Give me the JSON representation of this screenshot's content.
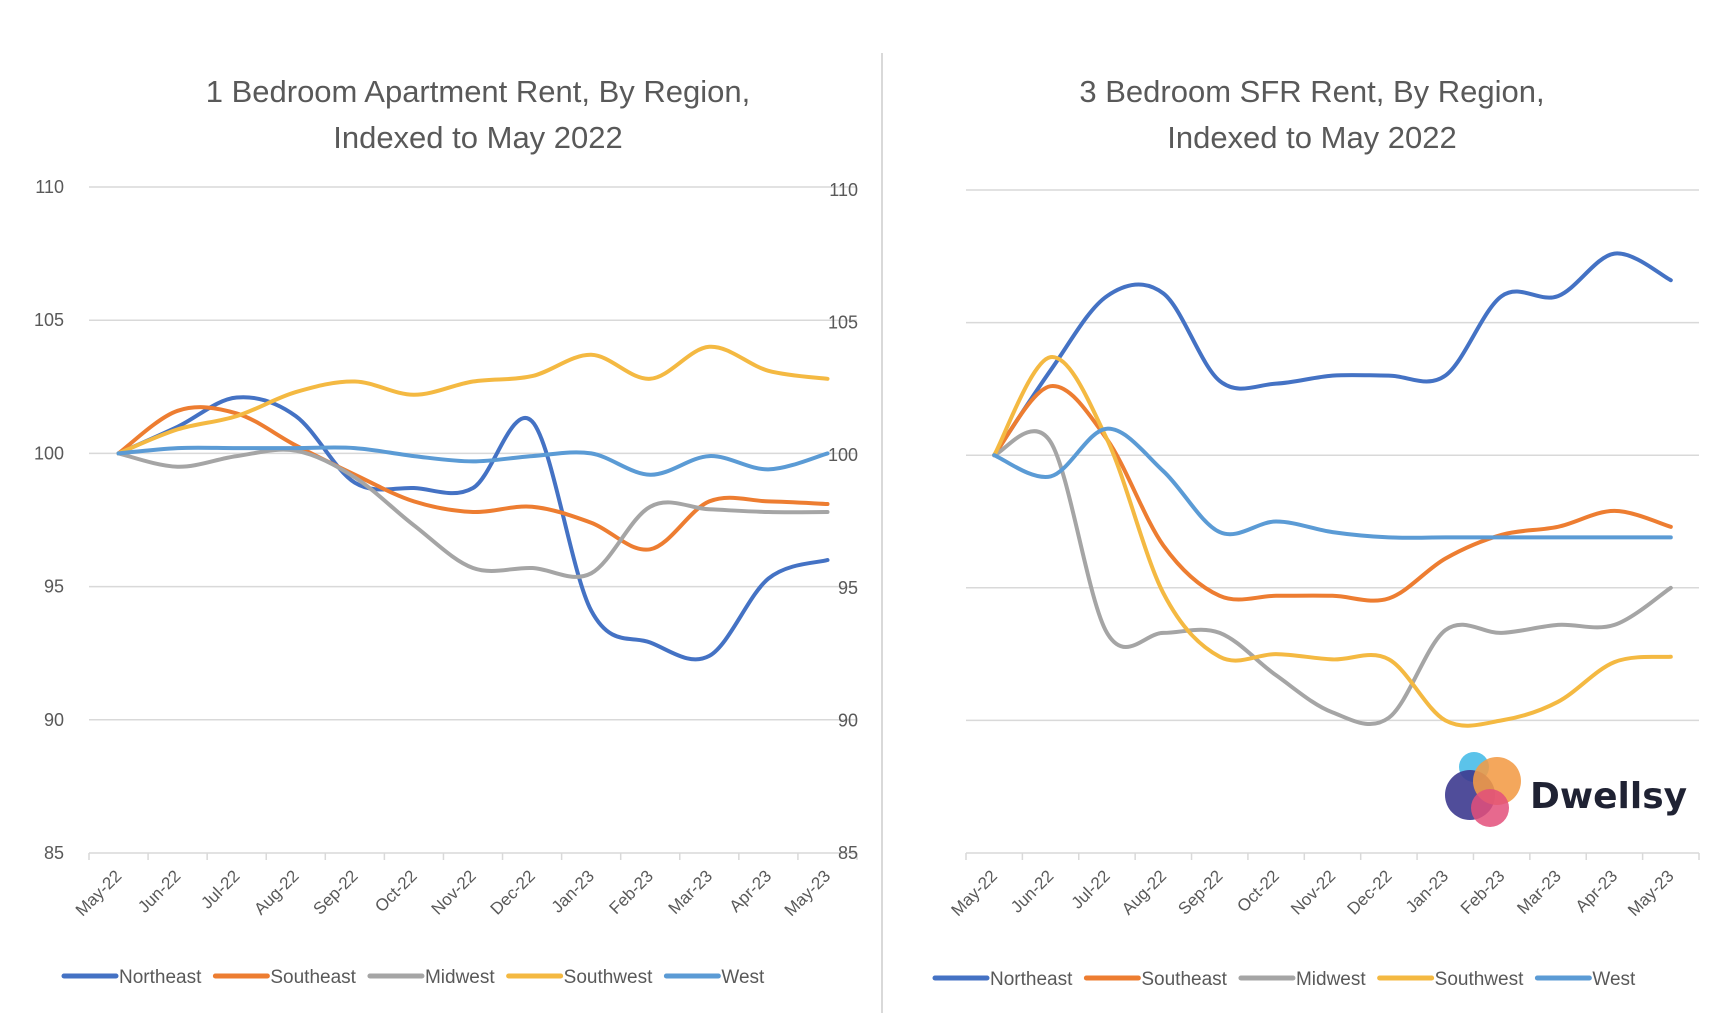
{
  "colors": {
    "Northeast": "#4472c4",
    "Southeast": "#ed7d31",
    "Midwest": "#a5a5a5",
    "Southwest": "#ffc000",
    "West": "#5b9bd5",
    "Southwest_display": "#f4b942",
    "text": "#595959",
    "grid": "#d9d9d9"
  },
  "logo": {
    "brand_name": "Dwellsy",
    "icon": "overlapping-circles-logo",
    "circle_colors": [
      "#5bc3ea",
      "#f29b45",
      "#3d3a8f",
      "#e34f7a"
    ]
  },
  "chart_data": [
    {
      "type": "line",
      "title_lines": [
        "1 Bedroom Apartment Rent, By Region,",
        "Indexed to May 2022"
      ],
      "title": "1 Bedroom Apartment Rent, By Region, Indexed to May 2022",
      "xlabel": "",
      "ylabel": "",
      "ylim": [
        85,
        110
      ],
      "yticks": [
        85,
        90,
        95,
        100,
        105,
        110
      ],
      "grid": true,
      "legend_position": "bottom",
      "categories": [
        "May-22",
        "Jun-22",
        "Jul-22",
        "Aug-22",
        "Sep-22",
        "Oct-22",
        "Nov-22",
        "Dec-22",
        "Jan-23",
        "Feb-23",
        "Mar-23",
        "Apr-23",
        "May-23"
      ],
      "series": [
        {
          "name": "Northeast",
          "values": [
            100,
            101.0,
            102.1,
            101.4,
            98.9,
            98.7,
            98.7,
            101.2,
            94.1,
            92.9,
            92.4,
            95.3,
            96.0
          ]
        },
        {
          "name": "Southeast",
          "values": [
            100,
            101.6,
            101.5,
            100.3,
            99.2,
            98.2,
            97.8,
            98.0,
            97.4,
            96.4,
            98.2,
            98.2,
            98.1
          ]
        },
        {
          "name": "Midwest",
          "values": [
            100,
            99.5,
            99.9,
            100.1,
            99.1,
            97.3,
            95.7,
            95.7,
            95.5,
            98.0,
            97.9,
            97.8,
            97.8
          ]
        },
        {
          "name": "Southwest",
          "values": [
            100,
            100.9,
            101.4,
            102.3,
            102.7,
            102.2,
            102.7,
            102.9,
            103.7,
            102.8,
            104.0,
            103.1,
            102.8
          ]
        },
        {
          "name": "West",
          "values": [
            100,
            100.2,
            100.2,
            100.2,
            100.2,
            99.9,
            99.7,
            99.9,
            100.0,
            99.2,
            99.9,
            99.4,
            100.0
          ]
        }
      ]
    },
    {
      "type": "line",
      "title_lines": [
        "3 Bedroom SFR Rent, By Region,",
        "Indexed to May 2022"
      ],
      "title": "3 Bedroom SFR Rent, By Region, Indexed to May 2022",
      "xlabel": "",
      "ylabel": "",
      "ylim": [
        85,
        110
      ],
      "yticks": [
        85,
        90,
        95,
        100,
        105,
        110
      ],
      "grid": true,
      "legend_position": "bottom",
      "categories": [
        "May-22",
        "Jun-22",
        "Jul-22",
        "Aug-22",
        "Sep-22",
        "Oct-22",
        "Nov-22",
        "Dec-22",
        "Jan-23",
        "Feb-23",
        "Mar-23",
        "Apr-23",
        "May-23"
      ],
      "series": [
        {
          "name": "Northeast",
          "values": [
            100,
            103.2,
            106.0,
            106.1,
            102.8,
            102.7,
            103.0,
            103.0,
            103.0,
            106.0,
            106.0,
            107.6,
            106.6
          ]
        },
        {
          "name": "Southeast",
          "values": [
            100,
            102.6,
            100.6,
            96.6,
            94.7,
            94.7,
            94.7,
            94.6,
            96.1,
            97.0,
            97.3,
            97.9,
            97.3
          ]
        },
        {
          "name": "Midwest",
          "values": [
            100,
            100.5,
            93.3,
            93.3,
            93.3,
            91.7,
            90.3,
            90.1,
            93.4,
            93.3,
            93.6,
            93.6,
            95.0
          ]
        },
        {
          "name": "Southwest",
          "values": [
            100,
            103.7,
            100.6,
            94.8,
            92.4,
            92.5,
            92.3,
            92.3,
            90.0,
            90.0,
            90.7,
            92.2,
            92.4
          ]
        },
        {
          "name": "West",
          "values": [
            100,
            99.2,
            101.0,
            99.4,
            97.1,
            97.5,
            97.1,
            96.9,
            96.9,
            96.9,
            96.9,
            96.9,
            96.9
          ]
        }
      ]
    }
  ]
}
